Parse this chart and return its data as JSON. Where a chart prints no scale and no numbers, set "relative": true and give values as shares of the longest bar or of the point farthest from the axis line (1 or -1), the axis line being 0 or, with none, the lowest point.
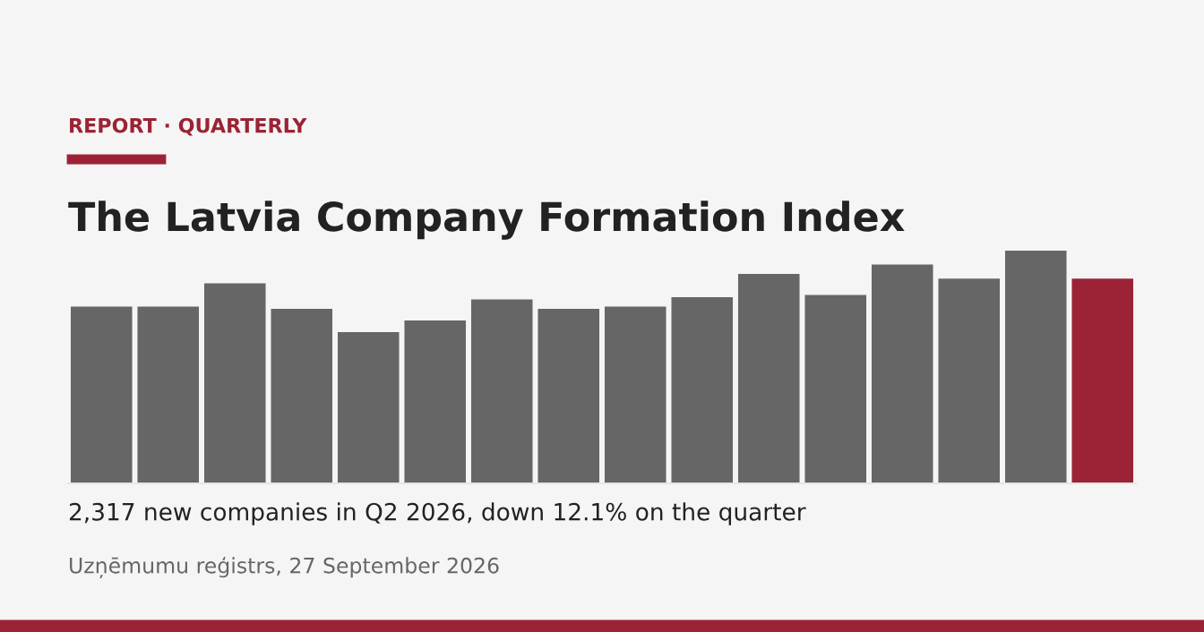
{
  "chart_data": {
    "type": "bar",
    "relative": true,
    "title": "The Latvia Company Formation Index",
    "subtitle": "REPORT · QUARTERLY",
    "categories": [
      null,
      null,
      null,
      null,
      null,
      null,
      null,
      null,
      null,
      null,
      null,
      null,
      null,
      null,
      null,
      null
    ],
    "values": [
      0.76,
      0.76,
      0.86,
      0.75,
      0.65,
      0.7,
      0.79,
      0.75,
      0.76,
      0.8,
      0.9,
      0.81,
      0.94,
      0.88,
      1,
      0.88
    ],
    "colors": [
      "#666666",
      "#666666",
      "#666666",
      "#666666",
      "#666666",
      "#666666",
      "#666666",
      "#666666",
      "#666666",
      "#666666",
      "#666666",
      "#666666",
      "#666666",
      "#666666",
      "#666666",
      "#9b2335"
    ],
    "annotations": [
      "2,317 new companies in Q2 2026, down 12.1% on the quarter",
      "Uzņēmumu reģistrs, 27 September 2026"
    ]
  }
}
